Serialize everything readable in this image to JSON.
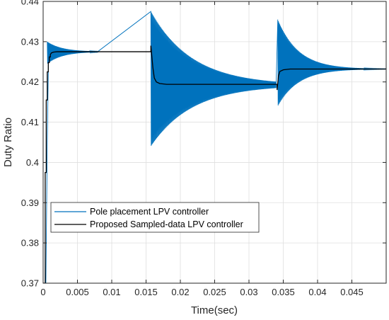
{
  "chart_data": {
    "type": "line",
    "title": "",
    "xlabel": "Time(sec)",
    "ylabel": "Duty Ratio",
    "xlim": [
      0,
      0.05
    ],
    "ylim": [
      0.37,
      0.44
    ],
    "x_ticks": [
      0,
      0.005,
      0.01,
      0.015,
      0.02,
      0.025,
      0.03,
      0.035,
      0.04,
      0.045
    ],
    "x_tick_labels": [
      "0",
      "0.005",
      "0.01",
      "0.015",
      "0.02",
      "0.025",
      "0.03",
      "0.035",
      "0.04",
      "0.045"
    ],
    "y_ticks": [
      0.37,
      0.38,
      0.39,
      0.4,
      0.41,
      0.42,
      0.43,
      0.44
    ],
    "y_tick_labels": [
      "0.37",
      "0.38",
      "0.39",
      "0.4",
      "0.41",
      "0.42",
      "0.43",
      "0.44"
    ],
    "grid": true,
    "legend_position": "lower-left",
    "series": [
      {
        "name": "Pole placement LPV controller",
        "color": "#0072BD",
        "style": "oscillatory switching response (decaying envelope)",
        "segments": [
          {
            "t_start": 0.0006,
            "t_end": 0.008,
            "settle": 0.4275,
            "upper_peak": 0.43,
            "lower_peak": 0.4245,
            "decay_time": 0.0022
          },
          {
            "t_start": 0.0157,
            "t_end": 0.034,
            "settle": 0.4192,
            "upper_peak": 0.4375,
            "lower_peak": 0.404,
            "decay_time": 0.006
          },
          {
            "t_start": 0.0342,
            "t_end": 0.05,
            "settle": 0.4232,
            "upper_peak": 0.4355,
            "lower_peak": 0.414,
            "decay_time": 0.003
          }
        ],
        "initial_points": [
          [
            0.0,
            0.37
          ],
          [
            0.0004,
            0.37
          ],
          [
            0.0006,
            0.405
          ],
          [
            0.0008,
            0.428
          ]
        ]
      },
      {
        "name": "Proposed Sampled-data LPV controller",
        "color": "#000000",
        "x": [
          0.0,
          0.0003,
          0.0003,
          0.00045,
          0.00045,
          0.0006,
          0.0006,
          0.00075,
          0.00075,
          0.0009,
          0.0009,
          0.00105,
          0.00105,
          0.0012,
          0.0015,
          0.002,
          0.003,
          0.0157,
          0.0157,
          0.016,
          0.0162,
          0.0165,
          0.017,
          0.018,
          0.0341,
          0.0341,
          0.0343,
          0.0345,
          0.035,
          0.036,
          0.05
        ],
        "values": [
          0.37,
          0.37,
          0.3975,
          0.3975,
          0.4155,
          0.4155,
          0.4225,
          0.4225,
          0.4248,
          0.4248,
          0.4262,
          0.4262,
          0.4268,
          0.4272,
          0.4274,
          0.4275,
          0.4275,
          0.4275,
          0.429,
          0.4235,
          0.421,
          0.42,
          0.4196,
          0.4194,
          0.4194,
          0.418,
          0.4215,
          0.4226,
          0.423,
          0.4232,
          0.4232
        ]
      }
    ]
  }
}
